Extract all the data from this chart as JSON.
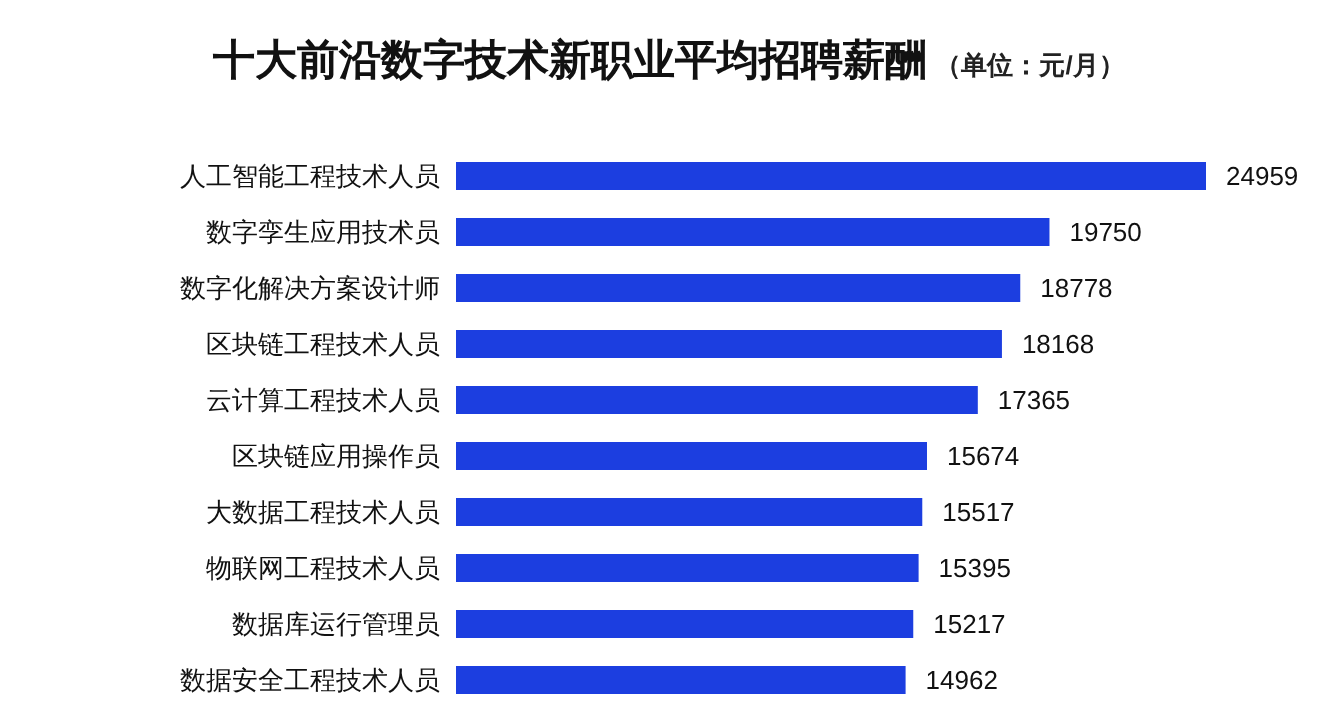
{
  "chart_data": {
    "type": "bar",
    "orientation": "horizontal",
    "title": "十大前沿数字技术新职业平均招聘薪酬",
    "subtitle": "（单位：元/月）",
    "categories": [
      "人工智能工程技术人员",
      "数字孪生应用技术员",
      "数字化解决方案设计师",
      "区块链工程技术人员",
      "云计算工程技术人员",
      "区块链应用操作员",
      "大数据工程技术人员",
      "物联网工程技术人员",
      "数据库运行管理员",
      "数据安全工程技术人员"
    ],
    "values": [
      24959,
      19750,
      18778,
      18168,
      17365,
      15674,
      15517,
      15395,
      15217,
      14962
    ],
    "color": "#1c3ee0",
    "data_labels": true
  }
}
